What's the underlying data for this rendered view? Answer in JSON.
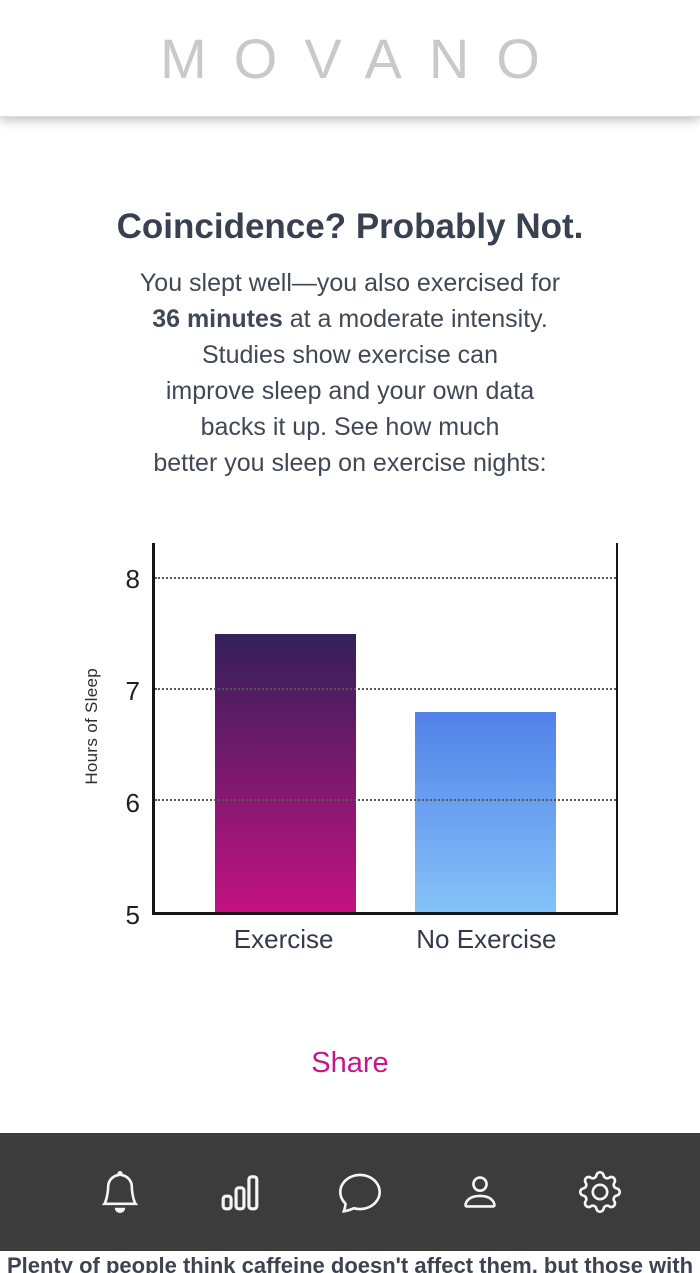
{
  "header": {
    "logo": "MOVANO"
  },
  "insight": {
    "title": "Coincidence? Probably Not.",
    "body": {
      "line1": "You slept well—you also exercised for",
      "line2_bold": "36 minutes",
      "line2_rest": " at a moderate intensity.",
      "line3": "Studies show exercise can",
      "line4": "improve sleep and your own data",
      "line5": "backs it up. See how much",
      "line6": "better you sleep on exercise nights:"
    },
    "share_label": "Share"
  },
  "chart_data": {
    "type": "bar",
    "categories": [
      "Exercise",
      "No Exercise"
    ],
    "values": [
      7.5,
      6.8
    ],
    "title": "",
    "xlabel": "",
    "ylabel": "Hours of Sleep",
    "yticks": [
      5,
      6,
      7,
      8
    ],
    "gridlines": [
      6,
      7,
      8
    ],
    "ylim": [
      5,
      8.32
    ],
    "grid": "dotted horizontal",
    "legend": "none",
    "bar_colors": [
      {
        "top": "#33205a",
        "bottom": "#c31281"
      },
      {
        "top": "#5181e9",
        "bottom": "#85c2f8"
      }
    ]
  },
  "nav": {
    "background": "#3c3c3c",
    "items": [
      {
        "icon": "bell-icon",
        "label": "notifications"
      },
      {
        "icon": "bar-chart-icon",
        "label": "stats"
      },
      {
        "icon": "chat-bubble-icon",
        "label": "messages"
      },
      {
        "icon": "person-icon",
        "label": "profile"
      },
      {
        "icon": "gear-icon",
        "label": "settings"
      }
    ]
  },
  "footer": {
    "cutoff_text": "Plenty of people think caffeine doesn't affect them, but those with"
  },
  "colors": {
    "accent": "#c2188c",
    "logo_gray": "#c9c9c9",
    "heading": "#394150"
  }
}
